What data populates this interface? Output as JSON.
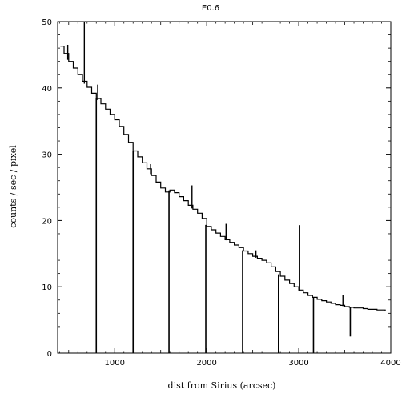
{
  "chart_data": {
    "type": "line",
    "title": "E0.6",
    "xlabel": "dist from Sirius (arcsec)",
    "ylabel": "counts / sec / pixel",
    "xlim": [
      380,
      4000
    ],
    "ylim": [
      0,
      50
    ],
    "x_ticks": [
      1000,
      2000,
      3000,
      4000
    ],
    "y_ticks": [
      0,
      10,
      20,
      30,
      40,
      50
    ],
    "x_tick_labels": [
      "1000",
      "2000",
      "3000",
      "4000"
    ],
    "y_tick_labels": [
      "0",
      "10",
      "20",
      "30",
      "40",
      "50"
    ],
    "grid": false,
    "legend": "none",
    "line_color": "#000000",
    "series": [
      {
        "x": [
          410,
          450,
          500,
          550,
          600,
          650,
          700,
          750,
          800,
          850,
          900,
          950,
          1000,
          1050,
          1100,
          1150,
          1200,
          1250,
          1300,
          1350,
          1400,
          1450,
          1500,
          1550,
          1600,
          1650,
          1700,
          1750,
          1800,
          1850,
          1900,
          1950,
          2000,
          2050,
          2100,
          2150,
          2200,
          2250,
          2300,
          2350,
          2400,
          2450,
          2500,
          2550,
          2600,
          2650,
          2700,
          2750,
          2800,
          2850,
          2900,
          2950,
          3000,
          3050,
          3100,
          3150,
          3200,
          3250,
          3300,
          3350,
          3400,
          3450,
          3500,
          3550,
          3600,
          3650,
          3700,
          3750,
          3800,
          3850,
          3900,
          3940
        ],
        "y": [
          46.3,
          45.2,
          44.0,
          43.0,
          42.0,
          41.0,
          40.1,
          39.2,
          38.4,
          37.6,
          36.8,
          36.0,
          35.2,
          34.2,
          33.0,
          31.8,
          30.5,
          29.6,
          28.7,
          27.8,
          26.8,
          25.8,
          24.9,
          24.3,
          24.6,
          24.2,
          23.6,
          23.0,
          22.3,
          21.7,
          21.1,
          20.3,
          19.1,
          18.6,
          18.1,
          17.6,
          17.1,
          16.7,
          16.3,
          15.9,
          15.4,
          15.0,
          14.6,
          14.3,
          14.0,
          13.6,
          13.0,
          12.3,
          11.6,
          11.0,
          10.5,
          10.0,
          9.5,
          9.1,
          8.7,
          8.4,
          8.1,
          7.9,
          7.7,
          7.5,
          7.3,
          7.2,
          7.0,
          6.9,
          6.8,
          6.8,
          6.7,
          6.6,
          6.6,
          6.5,
          6.5,
          6.4
        ]
      }
    ],
    "drops": [
      {
        "x": 800,
        "y": 0
      },
      {
        "x": 1200,
        "y": 0
      },
      {
        "x": 1590,
        "y": 0
      },
      {
        "x": 1990,
        "y": 0
      },
      {
        "x": 2390,
        "y": 0
      },
      {
        "x": 2780,
        "y": 0
      },
      {
        "x": 3160,
        "y": 0
      },
      {
        "x": 3560,
        "y": 2.5
      }
    ],
    "spikes": [
      {
        "x": 490,
        "y": 46.5
      },
      {
        "x": 670,
        "y": 50.0
      },
      {
        "x": 815,
        "y": 40.5
      },
      {
        "x": 1390,
        "y": 28.5
      },
      {
        "x": 1840,
        "y": 25.3
      },
      {
        "x": 2210,
        "y": 19.5
      },
      {
        "x": 2535,
        "y": 15.5
      },
      {
        "x": 3010,
        "y": 19.3
      },
      {
        "x": 3480,
        "y": 8.8
      }
    ]
  }
}
